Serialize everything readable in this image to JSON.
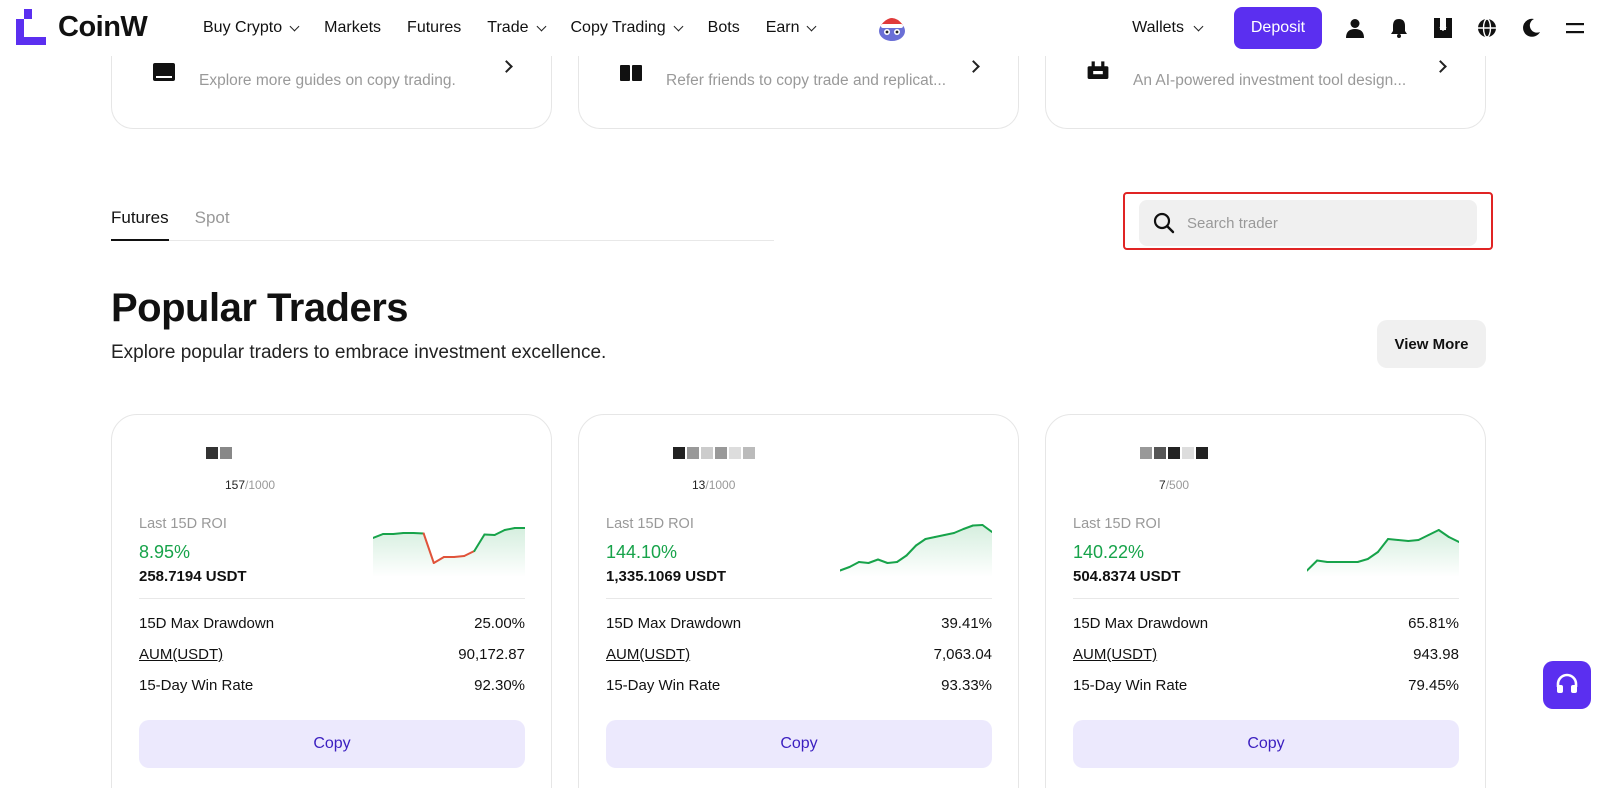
{
  "nav": {
    "logo_text": "CoinW",
    "links": [
      {
        "label": "Buy Crypto",
        "dropdown": true
      },
      {
        "label": "Markets",
        "dropdown": false
      },
      {
        "label": "Futures",
        "dropdown": false
      },
      {
        "label": "Trade",
        "dropdown": true
      },
      {
        "label": "Copy Trading",
        "dropdown": true
      },
      {
        "label": "Bots",
        "dropdown": false
      },
      {
        "label": "Earn",
        "dropdown": true
      }
    ],
    "wallets_label": "Wallets",
    "deposit_label": "Deposit",
    "icons": [
      "user-icon",
      "bell-icon",
      "download-icon",
      "globe-icon",
      "moon-icon",
      "menu-icon"
    ],
    "accent_color": "#5b2ff0"
  },
  "guides": [
    {
      "icon": "book-icon",
      "text": "Explore more guides on copy trading."
    },
    {
      "icon": "gift-icon",
      "text": "Refer friends to copy trade and replicat..."
    },
    {
      "icon": "robot-icon",
      "text": "An AI-powered investment tool design..."
    }
  ],
  "tabs": [
    {
      "label": "Futures",
      "active": true
    },
    {
      "label": "Spot",
      "active": false
    }
  ],
  "search": {
    "placeholder": "Search trader",
    "value": ""
  },
  "section": {
    "title": "Popular Traders",
    "subtitle": "Explore popular traders to embrace investment excellence.",
    "view_more_label": "View More"
  },
  "traders": [
    {
      "followers": "157",
      "max_followers": "/1000",
      "roi_label": "Last 15D ROI",
      "roi": "8.95%",
      "pnl": "258.7194 USDT",
      "rows": [
        {
          "label": "15D Max Drawdown",
          "value": "25.00%"
        },
        {
          "label": "AUM(USDT)",
          "value": "90,172.87"
        },
        {
          "label": "15-Day Win Rate",
          "value": "92.30%"
        }
      ],
      "copy_label": "Copy",
      "sparkline": [
        0.7,
        0.78,
        0.78,
        0.8,
        0.8,
        0.79,
        0.2,
        0.32,
        0.32,
        0.34,
        0.44,
        0.77,
        0.76,
        0.86,
        0.9,
        0.9
      ],
      "dip_range": [
        5,
        10
      ]
    },
    {
      "followers": "13",
      "max_followers": "/1000",
      "roi_label": "Last 15D ROI",
      "roi": "144.10%",
      "pnl": "1,335.1069 USDT",
      "rows": [
        {
          "label": "15D Max Drawdown",
          "value": "39.41%"
        },
        {
          "label": "AUM(USDT)",
          "value": "7,063.04"
        },
        {
          "label": "15-Day Win Rate",
          "value": "93.33%"
        }
      ],
      "copy_label": "Copy",
      "sparkline": [
        0.05,
        0.12,
        0.22,
        0.2,
        0.27,
        0.2,
        0.22,
        0.35,
        0.55,
        0.68,
        0.72,
        0.76,
        0.8,
        0.88,
        0.95,
        0.96,
        0.82
      ],
      "dip_range": null
    },
    {
      "followers": "7",
      "max_followers": "/500",
      "roi_label": "Last 15D ROI",
      "roi": "140.22%",
      "pnl": "504.8374 USDT",
      "rows": [
        {
          "label": "15D Max Drawdown",
          "value": "65.81%"
        },
        {
          "label": "AUM(USDT)",
          "value": "943.98"
        },
        {
          "label": "15-Day Win Rate",
          "value": "79.45%"
        }
      ],
      "copy_label": "Copy",
      "sparkline": [
        0.05,
        0.25,
        0.22,
        0.22,
        0.22,
        0.22,
        0.28,
        0.42,
        0.68,
        0.66,
        0.64,
        0.66,
        0.76,
        0.86,
        0.72,
        0.62
      ],
      "dip_range": null
    }
  ],
  "colors": {
    "positive": "#17a34a",
    "negative": "#e0533a",
    "highlight_border": "#e02424"
  }
}
